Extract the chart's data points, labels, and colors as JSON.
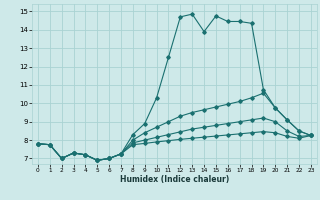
{
  "title": "",
  "xlabel": "Humidex (Indice chaleur)",
  "xlim": [
    -0.5,
    23.5
  ],
  "ylim": [
    6.7,
    15.4
  ],
  "xticks": [
    0,
    1,
    2,
    3,
    4,
    5,
    6,
    7,
    8,
    9,
    10,
    11,
    12,
    13,
    14,
    15,
    16,
    17,
    18,
    19,
    20,
    21,
    22,
    23
  ],
  "yticks": [
    7,
    8,
    9,
    10,
    11,
    12,
    13,
    14,
    15
  ],
  "bg_color": "#cee9e9",
  "grid_color": "#aad3d3",
  "line_color": "#1a7070",
  "lines": [
    {
      "x": [
        0,
        1,
        2,
        3,
        4,
        5,
        6,
        7,
        8,
        9,
        10,
        11,
        12,
        13,
        14,
        15,
        16,
        17,
        18,
        19,
        20,
        21,
        22,
        23
      ],
      "y": [
        7.8,
        7.75,
        7.0,
        7.3,
        7.2,
        6.9,
        7.0,
        7.25,
        8.3,
        8.9,
        10.3,
        12.5,
        14.7,
        14.85,
        13.9,
        14.75,
        14.45,
        14.45,
        14.35,
        10.75,
        9.75,
        9.1,
        8.5,
        8.25
      ]
    },
    {
      "x": [
        0,
        1,
        2,
        3,
        4,
        5,
        6,
        7,
        8,
        9,
        10,
        11,
        12,
        13,
        14,
        15,
        16,
        17,
        18,
        19,
        20,
        21,
        22,
        23
      ],
      "y": [
        7.8,
        7.75,
        7.0,
        7.3,
        7.2,
        6.9,
        7.0,
        7.25,
        8.0,
        8.4,
        8.7,
        9.0,
        9.3,
        9.5,
        9.65,
        9.8,
        9.95,
        10.1,
        10.3,
        10.55,
        9.75,
        9.1,
        8.5,
        8.25
      ]
    },
    {
      "x": [
        0,
        1,
        2,
        3,
        4,
        5,
        6,
        7,
        8,
        9,
        10,
        11,
        12,
        13,
        14,
        15,
        16,
        17,
        18,
        19,
        20,
        21,
        22,
        23
      ],
      "y": [
        7.8,
        7.75,
        7.0,
        7.3,
        7.2,
        6.9,
        7.0,
        7.25,
        7.85,
        8.0,
        8.15,
        8.3,
        8.45,
        8.6,
        8.7,
        8.8,
        8.9,
        9.0,
        9.1,
        9.2,
        9.0,
        8.5,
        8.2,
        8.25
      ]
    },
    {
      "x": [
        0,
        1,
        2,
        3,
        4,
        5,
        6,
        7,
        8,
        9,
        10,
        11,
        12,
        13,
        14,
        15,
        16,
        17,
        18,
        19,
        20,
        21,
        22,
        23
      ],
      "y": [
        7.8,
        7.75,
        7.0,
        7.3,
        7.2,
        6.9,
        7.0,
        7.25,
        7.75,
        7.82,
        7.9,
        7.97,
        8.04,
        8.1,
        8.16,
        8.22,
        8.28,
        8.34,
        8.4,
        8.46,
        8.4,
        8.2,
        8.1,
        8.25
      ]
    }
  ]
}
